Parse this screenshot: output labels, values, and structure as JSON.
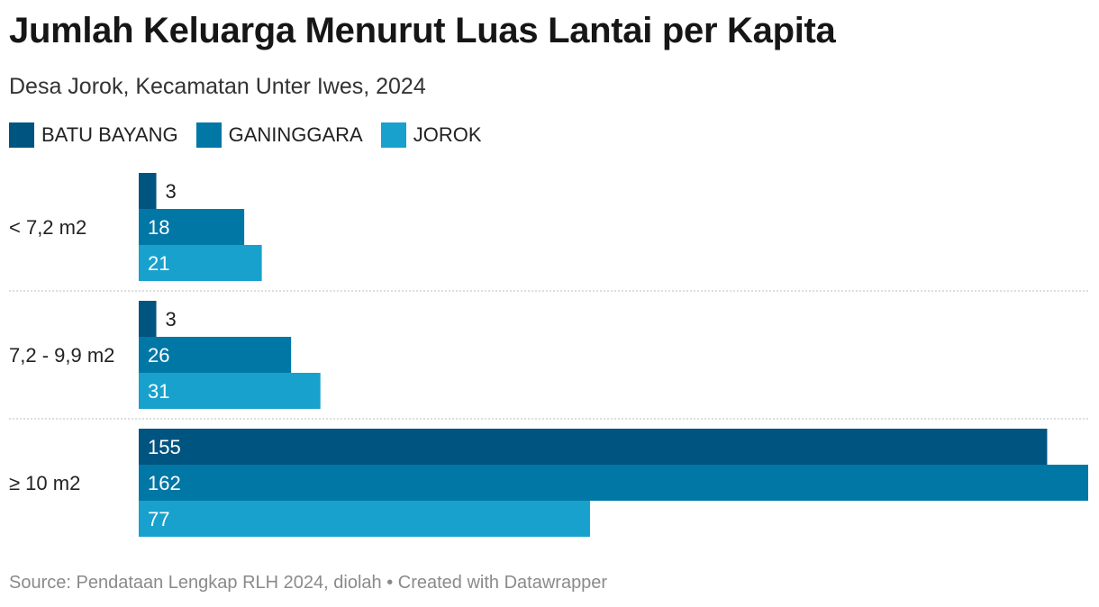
{
  "chart_data": {
    "type": "bar",
    "orientation": "horizontal",
    "title": "Jumlah Keluarga Menurut Luas Lantai per Kapita",
    "subtitle": "Desa Jorok, Kecamatan Unter Iwes, 2024",
    "categories": [
      "< 7,2 m2",
      "7,2 - 9,9 m2",
      "≥ 10 m2"
    ],
    "series": [
      {
        "name": "BATU BAYANG",
        "color": "#005480",
        "values": [
          3,
          3,
          155
        ]
      },
      {
        "name": "GANINGGARA",
        "color": "#0177a6",
        "values": [
          18,
          26,
          162
        ]
      },
      {
        "name": "JOROK",
        "color": "#18a1cd",
        "values": [
          21,
          31,
          77
        ]
      }
    ],
    "xlim": [
      0,
      162
    ],
    "grid": false,
    "legend_position": "top-left",
    "source": "Source: Pendataan Lengkap RLH 2024, diolah • Created with Datawrapper"
  }
}
